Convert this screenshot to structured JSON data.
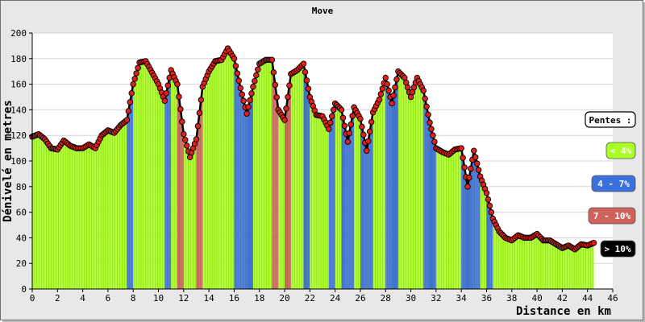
{
  "chart_data": {
    "type": "area",
    "title": "Move",
    "xlabel": "Distance en km",
    "ylabel": "Dénivelé en metres",
    "xlim": [
      0,
      46
    ],
    "ylim": [
      0,
      200
    ],
    "x_ticks": [
      "0",
      "2",
      "4",
      "6",
      "8",
      "10",
      "12",
      "14",
      "16",
      "18",
      "20",
      "22",
      "24",
      "26",
      "28",
      "30",
      "32",
      "34",
      "36",
      "38",
      "40",
      "42",
      "44",
      "46"
    ],
    "y_ticks": [
      "0",
      "20",
      "40",
      "60",
      "80",
      "100",
      "120",
      "140",
      "160",
      "180",
      "200"
    ],
    "grid": true,
    "series": [
      {
        "x": [
          0,
          0.5,
          1,
          1.5,
          2,
          2.5,
          3,
          3.5,
          4,
          4.5,
          5,
          5.5,
          6,
          6.5,
          7,
          7.5,
          8,
          8.5,
          9,
          9.5,
          10,
          10.5,
          11,
          11.5,
          12,
          12.5,
          13,
          13.5,
          14,
          14.5,
          15,
          15.5,
          16,
          16.5,
          17,
          17.5,
          18,
          18.5,
          19,
          19.5,
          20,
          20.5,
          21,
          21.5,
          22,
          22.5,
          23,
          23.5,
          24,
          24.5,
          25,
          25.5,
          26,
          26.5,
          27,
          27.5,
          28,
          28.5,
          29,
          29.5,
          30,
          30.5,
          31,
          31.5,
          32,
          32.5,
          33,
          33.5,
          34,
          34.5,
          35,
          35.5,
          36,
          36.5,
          37,
          37.5,
          38,
          38.5,
          39,
          39.5,
          40,
          40.5,
          41,
          41.5,
          42,
          42.5,
          43,
          43.5,
          44,
          44.5
        ],
        "y": [
          119,
          121,
          117,
          110,
          109,
          116,
          112,
          110,
          110,
          113,
          110,
          120,
          124,
          122,
          128,
          132,
          160,
          177,
          178,
          169,
          160,
          147,
          171,
          160,
          121,
          103,
          117,
          158,
          170,
          178,
          179,
          188,
          180,
          157,
          137,
          158,
          176,
          179,
          179,
          140,
          132,
          168,
          171,
          176,
          150,
          136,
          135,
          125,
          145,
          140,
          115,
          142,
          133,
          108,
          138,
          148,
          165,
          145,
          170,
          165,
          150,
          165,
          155,
          130,
          110,
          107,
          105,
          109,
          110,
          80,
          108,
          88,
          75,
          55,
          45,
          40,
          38,
          42,
          40,
          40,
          43,
          38,
          38,
          35,
          32,
          34,
          31,
          35,
          34,
          36
        ]
      }
    ],
    "legend": {
      "title": "Pentes :",
      "position": "right",
      "items": [
        {
          "label": "< 4%",
          "color": "#aaff22",
          "text_color": "#ffffff"
        },
        {
          "label": "4 - 7%",
          "color": "#3a6fdc",
          "text_color": "#ffffff"
        },
        {
          "label": "7 - 10%",
          "color": "#d0625c",
          "text_color": "#ffffff"
        },
        {
          "label": "> 10%",
          "color": "#000000",
          "text_color": "#ffffff"
        }
      ]
    },
    "colors": {
      "fill": "#aaff22",
      "outline": "#000000",
      "marker": "#e0201a",
      "frame": "#e8e8e8"
    }
  }
}
